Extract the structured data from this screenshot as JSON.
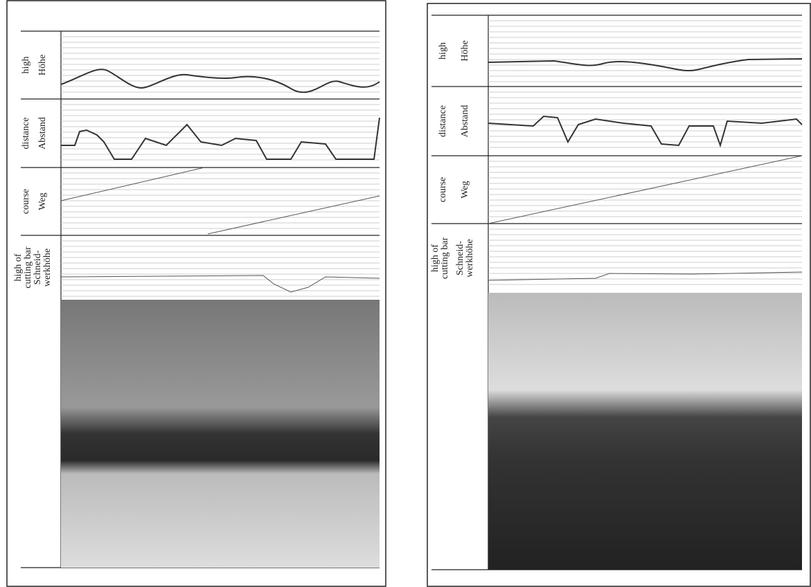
{
  "panels": [
    {
      "rows": [
        {
          "en": [
            "high"
          ],
          "de": [
            "Höhe"
          ]
        },
        {
          "en": [
            "distance"
          ],
          "de": [
            "Abstand"
          ]
        },
        {
          "en": [
            "course"
          ],
          "de": [
            "Weg"
          ]
        },
        {
          "en": [
            "high of",
            "cutting bar"
          ],
          "de": [
            "Schneid-",
            "werkhöhe"
          ]
        }
      ]
    },
    {
      "rows": [
        {
          "en": [
            "high"
          ],
          "de": [
            "Höhe"
          ]
        },
        {
          "en": [
            "distance"
          ],
          "de": [
            "Abstand"
          ]
        },
        {
          "en": [
            "course"
          ],
          "de": [
            "Weg"
          ]
        },
        {
          "en": [
            "high of",
            "cutting bar"
          ],
          "de": [
            "Schneid-",
            "werkhöhe"
          ]
        }
      ]
    }
  ]
}
